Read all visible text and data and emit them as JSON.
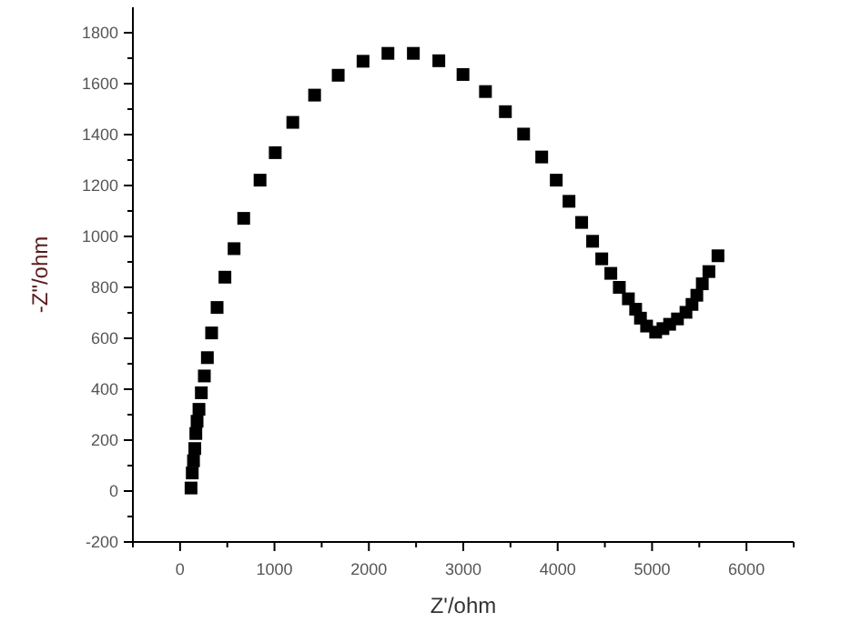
{
  "chart_data": {
    "type": "scatter",
    "xlabel": "Z'/ohm",
    "ylabel": "-Z\"/ohm",
    "marker": "square",
    "xlim": [
      -500,
      6500
    ],
    "ylim": [
      -200,
      1900
    ],
    "xticks": [
      {
        "value": -500,
        "label": null
      },
      0,
      {
        "value": 500,
        "label": null
      },
      1000,
      {
        "value": 1500,
        "label": null
      },
      2000,
      {
        "value": 2500,
        "label": null
      },
      3000,
      {
        "value": 3500,
        "label": null
      },
      4000,
      {
        "value": 4500,
        "label": null
      },
      5000,
      {
        "value": 5500,
        "label": null
      },
      6000,
      {
        "value": 6500,
        "label": null
      }
    ],
    "yticks": [
      -200,
      {
        "value": -100,
        "label": null
      },
      0,
      {
        "value": 100,
        "label": null
      },
      200,
      {
        "value": 300,
        "label": null
      },
      400,
      {
        "value": 500,
        "label": null
      },
      600,
      {
        "value": 700,
        "label": null
      },
      800,
      {
        "value": 900,
        "label": null
      },
      1000,
      {
        "value": 1100,
        "label": null
      },
      1200,
      {
        "value": 1300,
        "label": null
      },
      1400,
      {
        "value": 1500,
        "label": null
      },
      1600,
      {
        "value": 1700,
        "label": null
      },
      1800
    ],
    "series": [
      {
        "color": "#000000",
        "x": [
          116,
          129,
          142,
          156,
          167,
          180,
          200,
          225,
          257,
          289,
          334,
          392,
          475,
          572,
          674,
          847,
          1008,
          1194,
          1425,
          1675,
          1938,
          2202,
          2471,
          2741,
          2997,
          3235,
          3446,
          3639,
          3831,
          3985,
          4120,
          4254,
          4370,
          4467,
          4563,
          4653,
          4749,
          4826,
          4877,
          4942,
          5038,
          5115,
          5186,
          5269,
          5359,
          5423,
          5474,
          5532,
          5602,
          5698
        ],
        "values": [
          12,
          71,
          119,
          167,
          226,
          274,
          321,
          386,
          452,
          524,
          621,
          721,
          840,
          952,
          1071,
          1221,
          1329,
          1448,
          1555,
          1633,
          1688,
          1719,
          1719,
          1690,
          1636,
          1569,
          1490,
          1402,
          1312,
          1221,
          1138,
          1055,
          981,
          912,
          855,
          800,
          755,
          714,
          679,
          648,
          624,
          638,
          655,
          676,
          702,
          733,
          769,
          814,
          862,
          924
        ]
      }
    ]
  }
}
